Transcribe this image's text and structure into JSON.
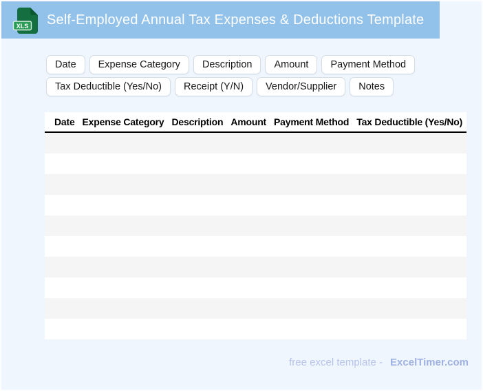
{
  "header": {
    "title": "Self-Employed Annual Tax Expenses & Deductions Template",
    "file_badge": "XLS"
  },
  "chips": {
    "row1": [
      "Date",
      "Expense Category",
      "Description",
      "Amount",
      "Payment Method"
    ],
    "row2": [
      "Tax Deductible (Yes/No)",
      "Receipt (Y/N)",
      "Vendor/Supplier",
      "Notes"
    ]
  },
  "table": {
    "columns": [
      "Date",
      "Expense Category",
      "Description",
      "Amount",
      "Payment Method",
      "Tax Deductible (Yes/No)"
    ],
    "row_count": 10
  },
  "footer": {
    "label": "free excel template -",
    "brand": "ExcelTimer.com"
  },
  "colors": {
    "titlebar_blue": "#92c1ea",
    "page_background": "#eff6fd",
    "row_stripe": "#f5f5f6",
    "icon_green": "#156e3f",
    "icon_fold_green": "#0b5730",
    "badge_green": "#2d9c58",
    "header_underline": "#000000",
    "footer_text": "#b6c3ec",
    "footer_brand": "#9fb1e2"
  }
}
